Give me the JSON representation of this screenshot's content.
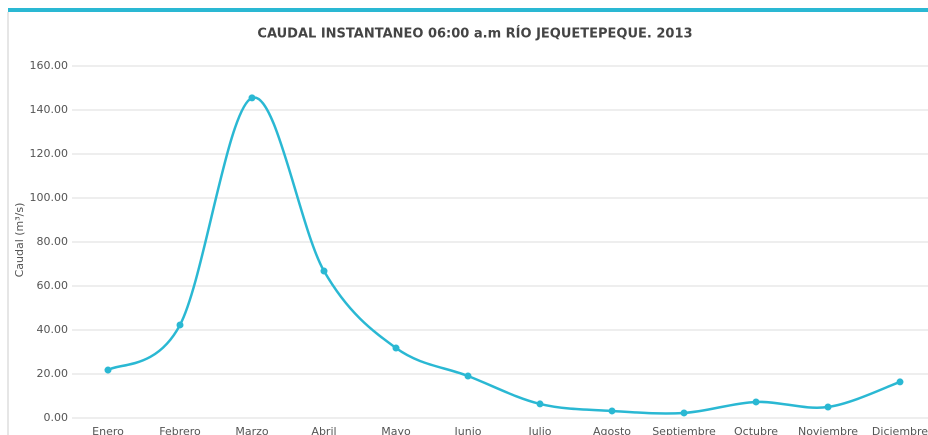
{
  "chart_data": {
    "type": "line",
    "title": "CAUDAL INSTANTANEO 06:00 a.m RÍO JEQUETEPEQUE. 2013",
    "y_label": "Caudal (m³/s)",
    "categories": [
      "Enero",
      "Febrero",
      "Marzo",
      "Abril",
      "Mayo",
      "Junio",
      "Julio",
      "Agosto",
      "Septiembre",
      "Octubre",
      "Noviembre",
      "Diciembre"
    ],
    "series": [
      {
        "name": "Caudal",
        "color": "#2ab8d3",
        "values": [
          21.8,
          42.3,
          145.5,
          66.8,
          31.8,
          19.1,
          6.4,
          3.2,
          2.3,
          7.3,
          5.0,
          16.4
        ]
      }
    ],
    "ylim": [
      0,
      160
    ],
    "yticks": [
      {
        "value": 0,
        "label": "0.00"
      },
      {
        "value": 20,
        "label": "20.00"
      },
      {
        "value": 40,
        "label": "40.00"
      },
      {
        "value": 60,
        "label": "60.00"
      },
      {
        "value": 80,
        "label": "80.00"
      },
      {
        "value": 100,
        "label": "100.00"
      },
      {
        "value": 120,
        "label": "120.00"
      },
      {
        "value": 140,
        "label": "140.00"
      },
      {
        "value": 160,
        "label": "160.00"
      }
    ],
    "grid": true
  }
}
